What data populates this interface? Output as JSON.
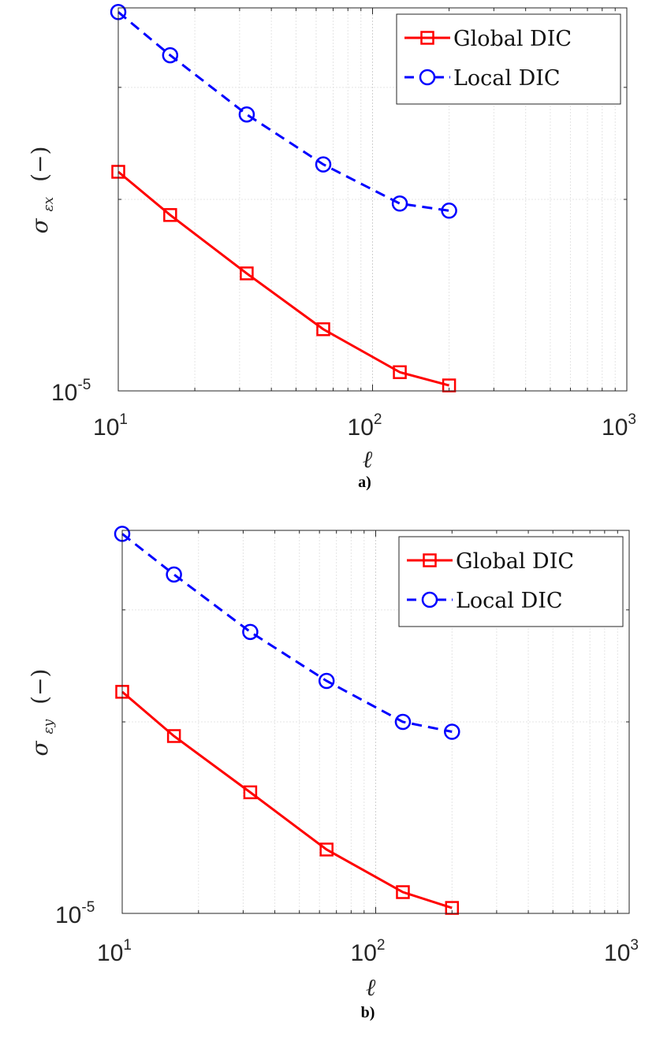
{
  "charts": [
    {
      "caption": "a)",
      "ylabel_base": "σ",
      "ylabel_sub": "εx",
      "ylabel_suffix": "(−)",
      "xlabel": "ℓ",
      "x_ticks": [
        {
          "base": "10",
          "exp": "1"
        },
        {
          "base": "10",
          "exp": "2"
        },
        {
          "base": "10",
          "exp": "3"
        }
      ],
      "y_ticks": [
        {
          "base": "10",
          "exp": "-5"
        }
      ]
    },
    {
      "caption": "b)",
      "ylabel_base": "σ",
      "ylabel_sub": "εy",
      "ylabel_suffix": "(−)",
      "xlabel": "ℓ",
      "x_ticks": [
        {
          "base": "10",
          "exp": "1"
        },
        {
          "base": "10",
          "exp": "2"
        },
        {
          "base": "10",
          "exp": "3"
        }
      ],
      "y_ticks": [
        {
          "base": "10",
          "exp": "-5"
        }
      ]
    }
  ],
  "chart_data": [
    {
      "type": "line",
      "title": "",
      "xlabel": "ℓ",
      "ylabel": "σεx (−)",
      "x_scale": "log",
      "y_scale": "log",
      "xlim": [
        10,
        1000
      ],
      "ylim": [
        1e-05,
        4e-05
      ],
      "grid": true,
      "legend_position": "top-right",
      "x": [
        10,
        16,
        32,
        64,
        128,
        200
      ],
      "series": [
        {
          "name": "Global DIC",
          "color": "#ff0000",
          "line": "solid",
          "marker": "square",
          "values": [
            2.21e-05,
            1.89e-05,
            1.53e-05,
            1.25e-05,
            1.07e-05,
            1.02e-05
          ]
        },
        {
          "name": "Local DIC",
          "color": "#0000ff",
          "line": "dashed",
          "marker": "circle",
          "values": [
            3.94e-05,
            3.37e-05,
            2.72e-05,
            2.27e-05,
            1.97e-05,
            1.92e-05
          ]
        }
      ]
    },
    {
      "type": "line",
      "title": "",
      "xlabel": "ℓ",
      "ylabel": "σεy (−)",
      "x_scale": "log",
      "y_scale": "log",
      "xlim": [
        10,
        1000
      ],
      "ylim": [
        1e-05,
        4e-05
      ],
      "grid": true,
      "legend_position": "top-right",
      "x": [
        10,
        16,
        32,
        64,
        128,
        200
      ],
      "series": [
        {
          "name": "Global DIC",
          "color": "#ff0000",
          "line": "solid",
          "marker": "square",
          "values": [
            2.23e-05,
            1.9e-05,
            1.55e-05,
            1.26e-05,
            1.08e-05,
            1.02e-05
          ]
        },
        {
          "name": "Local DIC",
          "color": "#0000ff",
          "line": "dashed",
          "marker": "circle",
          "values": [
            3.95e-05,
            3.41e-05,
            2.77e-05,
            2.32e-05,
            2e-05,
            1.93e-05
          ]
        }
      ]
    }
  ]
}
